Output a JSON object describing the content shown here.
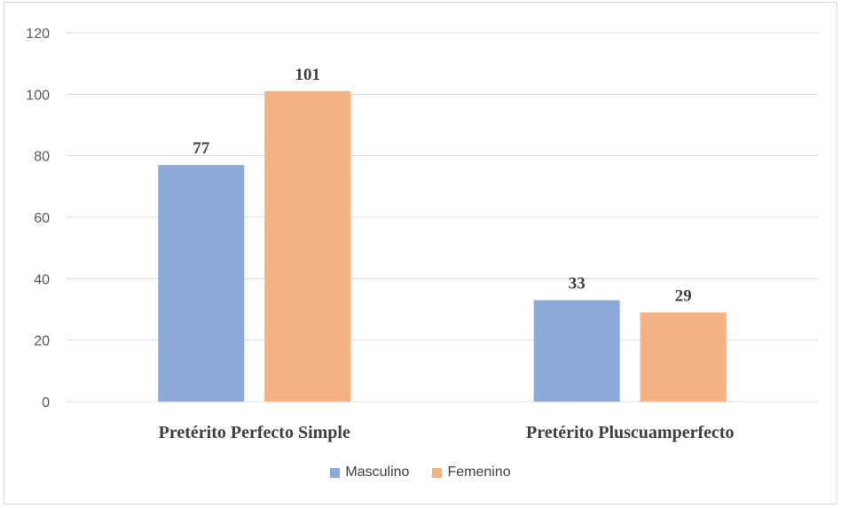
{
  "chart_data": {
    "type": "bar",
    "categories": [
      "Pretérito Perfecto Simple",
      "Pretérito Pluscuamperfecto"
    ],
    "series": [
      {
        "name": "Masculino",
        "values": [
          77,
          33
        ],
        "color": "#8eaadb"
      },
      {
        "name": "Femenino",
        "values": [
          101,
          29
        ],
        "color": "#f4b183"
      }
    ],
    "y_ticks": [
      "0",
      "20",
      "40",
      "60",
      "80",
      "100",
      "120"
    ],
    "ylim": [
      0,
      120
    ],
    "grid": true,
    "legend_position": "bottom",
    "data_labels": true,
    "gridline_color": "#d9d9d9",
    "axis_label_color": "#595959"
  }
}
